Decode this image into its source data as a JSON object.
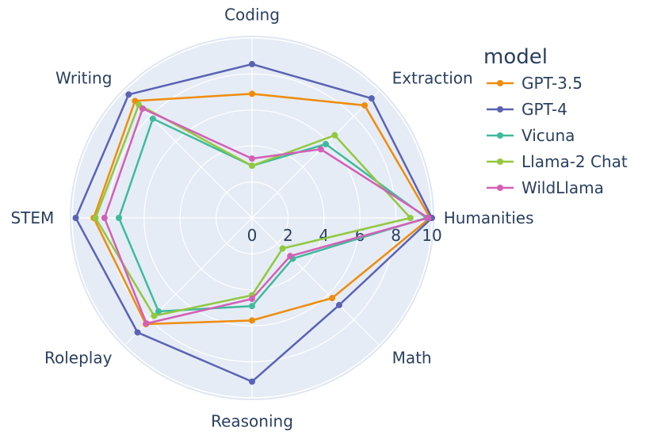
{
  "chart_data": {
    "type": "radar",
    "categories": [
      "Coding",
      "Extraction",
      "Humanities",
      "Math",
      "Reasoning",
      "Roleplay",
      "STEM",
      "Writing"
    ],
    "radial_range": [
      0,
      10
    ],
    "radial_ticks": [
      "0",
      "2",
      "4",
      "6",
      "8",
      "10"
    ],
    "legend_title": "model",
    "legend_position": "right",
    "series": [
      {
        "name": "GPT-3.5",
        "color": "#EF8C0B",
        "values": [
          6.9,
          8.85,
          9.9,
          6.3,
          5.7,
          8.35,
          8.8,
          9.2
        ]
      },
      {
        "name": "GPT-4",
        "color": "#5A63B3",
        "values": [
          8.55,
          9.4,
          10.0,
          6.85,
          9.1,
          9.0,
          9.8,
          9.7
        ]
      },
      {
        "name": "Vicuna",
        "color": "#3FBA9C",
        "values": [
          2.9,
          5.8,
          9.7,
          3.2,
          4.9,
          7.35,
          7.4,
          7.8
        ]
      },
      {
        "name": "Llama-2 Chat",
        "color": "#92C83E",
        "values": [
          2.9,
          6.5,
          8.8,
          2.4,
          4.3,
          7.7,
          8.7,
          8.9
        ]
      },
      {
        "name": "WildLlama",
        "color": "#D45FB5",
        "values": [
          3.3,
          5.4,
          9.8,
          3.0,
          4.5,
          8.3,
          8.2,
          8.6
        ]
      }
    ]
  }
}
